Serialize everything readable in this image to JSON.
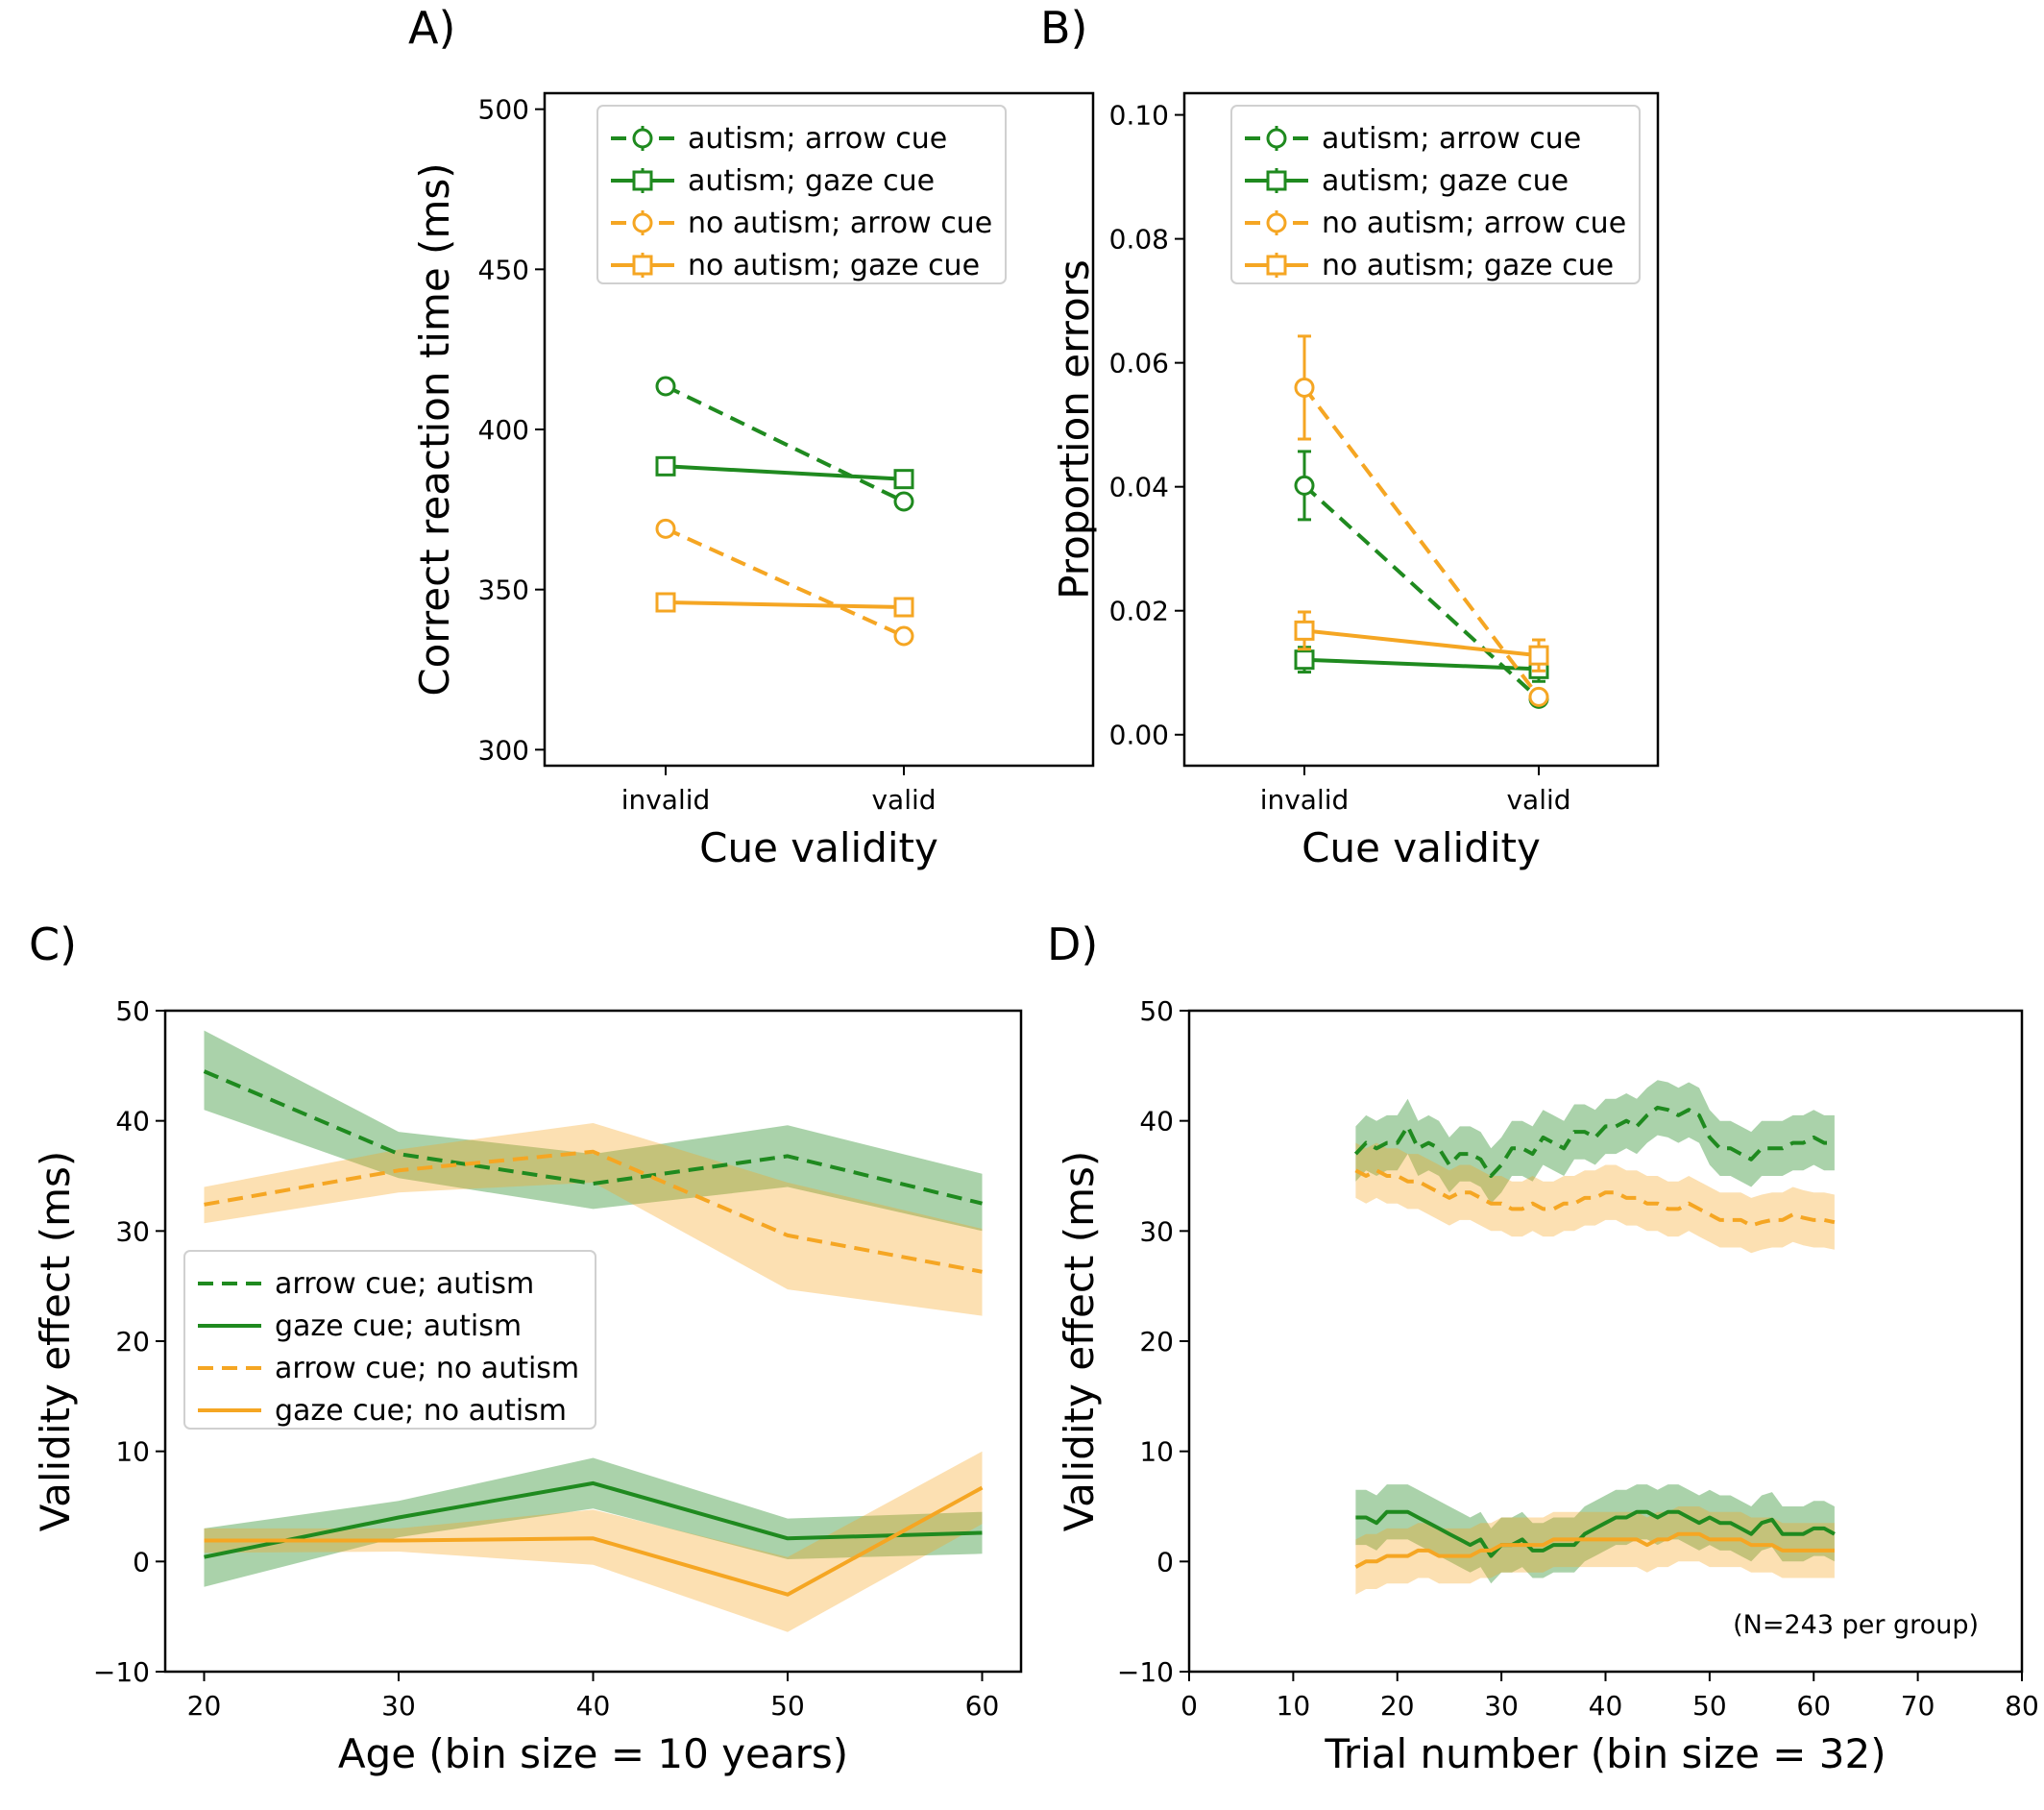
{
  "colors": {
    "autism": "#1f8a1f",
    "no_autism": "#f5a623"
  },
  "chart_data": [
    {
      "panel": "A)",
      "type": "line",
      "xlabel": "Cue validity",
      "ylabel": "Correct reaction time (ms)",
      "categories": [
        "invalid",
        "valid"
      ],
      "ylim": [
        295,
        505
      ],
      "yticks": [
        300,
        350,
        400,
        450,
        500
      ],
      "legend_placement": "top-right",
      "series": [
        {
          "name": "autism; arrow cue",
          "group": "autism",
          "cue": "arrow",
          "values": [
            413.5,
            377.5
          ],
          "err": [
            1.5,
            1.5
          ]
        },
        {
          "name": "autism; gaze cue",
          "group": "autism",
          "cue": "gaze",
          "values": [
            388.5,
            384.5
          ],
          "err": [
            1.5,
            1.5
          ]
        },
        {
          "name": "no autism; arrow cue",
          "group": "no_autism",
          "cue": "arrow",
          "values": [
            369,
            335.5
          ],
          "err": [
            1.5,
            1.5
          ]
        },
        {
          "name": "no autism; gaze cue",
          "group": "no_autism",
          "cue": "gaze",
          "values": [
            346,
            344.5
          ],
          "err": [
            1.5,
            1.5
          ]
        }
      ]
    },
    {
      "panel": "B)",
      "type": "line",
      "xlabel": "Cue validity",
      "ylabel": "Proportion errors",
      "categories": [
        "invalid",
        "valid"
      ],
      "ylim": [
        -0.005,
        0.1035
      ],
      "yticks": [
        0.0,
        0.02,
        0.04,
        0.06,
        0.08,
        0.1
      ],
      "ytick_labels": [
        "0.00",
        "0.02",
        "0.04",
        "0.06",
        "0.08",
        "0.10"
      ],
      "legend_placement": "top-right",
      "series": [
        {
          "name": "autism; arrow cue",
          "group": "autism",
          "cue": "arrow",
          "values": [
            0.0402,
            0.0058
          ],
          "err": [
            0.0055,
            0.001
          ]
        },
        {
          "name": "autism; gaze cue",
          "group": "autism",
          "cue": "gaze",
          "values": [
            0.0121,
            0.0106
          ],
          "err": [
            0.002,
            0.002
          ]
        },
        {
          "name": "no autism; arrow cue",
          "group": "no_autism",
          "cue": "arrow",
          "values": [
            0.056,
            0.0061
          ],
          "err": [
            0.0083,
            0.001
          ]
        },
        {
          "name": "no autism; gaze cue",
          "group": "no_autism",
          "cue": "gaze",
          "values": [
            0.0168,
            0.0128
          ],
          "err": [
            0.003,
            0.0025
          ]
        }
      ]
    },
    {
      "panel": "C)",
      "type": "line",
      "xlabel": "Age (bin size = 10 years)",
      "ylabel": "Validity effect (ms)",
      "x": [
        20,
        30,
        40,
        50,
        60
      ],
      "xlim": [
        18,
        62
      ],
      "xticks": [
        20,
        30,
        40,
        50,
        60
      ],
      "ylim": [
        -10,
        50
      ],
      "yticks": [
        -10,
        0,
        10,
        20,
        30,
        40,
        50
      ],
      "legend_placement": "center-left",
      "series": [
        {
          "name": "arrow cue; autism",
          "group": "autism",
          "cue": "arrow",
          "values": [
            44.5,
            37,
            34.3,
            36.8,
            32.5
          ],
          "lower": [
            41,
            34.8,
            32,
            34,
            30
          ],
          "upper": [
            48.2,
            39,
            37,
            39.6,
            35.2
          ]
        },
        {
          "name": "gaze cue; autism",
          "group": "autism",
          "cue": "gaze",
          "values": [
            0.4,
            4,
            7.1,
            2.1,
            2.6
          ],
          "lower": [
            -2.3,
            2.2,
            4.8,
            0.2,
            0.7
          ],
          "upper": [
            3,
            5.5,
            9.4,
            3.9,
            4.5
          ]
        },
        {
          "name": "arrow cue; no autism",
          "group": "no_autism",
          "cue": "arrow",
          "values": [
            32.4,
            35.5,
            37.2,
            29.6,
            26.3
          ],
          "lower": [
            30.7,
            33.5,
            34.4,
            24.7,
            22.3
          ],
          "upper": [
            34,
            37.4,
            39.8,
            34.4,
            30.2
          ]
        },
        {
          "name": "gaze cue; no autism",
          "group": "no_autism",
          "cue": "gaze",
          "values": [
            1.9,
            1.9,
            2.1,
            -3,
            6.7
          ],
          "lower": [
            0.8,
            0.9,
            -0.3,
            -6.4,
            3.4
          ],
          "upper": [
            3,
            3,
            4.7,
            0.4,
            10
          ]
        }
      ]
    },
    {
      "panel": "D)",
      "type": "line",
      "xlabel": "Trial number (bin size = 32)",
      "ylabel": "Validity effect (ms)",
      "annotation": "(N=243 per group)",
      "xlim": [
        0,
        80
      ],
      "xticks": [
        0,
        10,
        20,
        30,
        40,
        50,
        60,
        70,
        80
      ],
      "ylim": [
        -10,
        50
      ],
      "yticks": [
        -10,
        0,
        10,
        20,
        30,
        40,
        50
      ],
      "band_halfwidth": 2.5,
      "x": [
        16,
        17,
        18,
        19,
        20,
        21,
        22,
        23,
        24,
        25,
        26,
        27,
        28,
        29,
        30,
        31,
        32,
        33,
        34,
        35,
        36,
        37,
        38,
        39,
        40,
        41,
        42,
        43,
        44,
        45,
        46,
        47,
        48,
        49,
        50,
        51,
        52,
        53,
        54,
        55,
        56,
        57,
        58,
        59,
        60,
        61,
        62
      ],
      "series": [
        {
          "name": "arrow cue; autism",
          "group": "autism",
          "cue": "arrow",
          "values": [
            37,
            38,
            37.5,
            38,
            38,
            39.5,
            37.5,
            38,
            37.5,
            36,
            37,
            37,
            36.5,
            35,
            36,
            37.5,
            37.5,
            37,
            38.5,
            38,
            37.5,
            39,
            39,
            38.5,
            39.5,
            39.5,
            40,
            39.5,
            40.5,
            41.2,
            41,
            40.5,
            41,
            40.5,
            38.5,
            37.5,
            37.5,
            37,
            36.5,
            37.5,
            37.5,
            37.5,
            38,
            38,
            38.5,
            38,
            38
          ]
        },
        {
          "name": "gaze cue; autism",
          "group": "autism",
          "cue": "gaze",
          "values": [
            4,
            4,
            3.5,
            4.5,
            4.5,
            4.5,
            4,
            3.5,
            3,
            2.5,
            2,
            1.5,
            2,
            0.5,
            1.5,
            1.5,
            2,
            1,
            1,
            1.5,
            1.5,
            1.5,
            2.5,
            3,
            3.5,
            4,
            4,
            4.5,
            4.5,
            4,
            4.5,
            4.5,
            4,
            3.5,
            4,
            3.5,
            3.5,
            3,
            2.5,
            3.5,
            3.8,
            2.5,
            2.5,
            2.5,
            3,
            3,
            2.5
          ]
        },
        {
          "name": "arrow cue; no autism",
          "group": "no_autism",
          "cue": "arrow",
          "values": [
            35.5,
            35,
            35.5,
            35,
            35,
            34.5,
            34.5,
            34,
            33.5,
            33,
            33.5,
            33.5,
            33,
            32.5,
            32.5,
            32,
            32,
            32.5,
            32,
            32,
            32.5,
            32.5,
            33,
            33,
            33.5,
            33.5,
            33,
            33,
            32.5,
            32.5,
            32,
            32,
            32.5,
            32,
            31.5,
            31,
            31,
            31,
            30.5,
            30.8,
            31,
            31,
            31.5,
            31.2,
            31,
            31,
            30.8
          ]
        },
        {
          "name": "gaze cue; no autism",
          "group": "no_autism",
          "cue": "gaze",
          "values": [
            -0.5,
            0,
            0,
            0.5,
            0.5,
            0.5,
            1,
            1,
            0.5,
            0.5,
            0.5,
            0.5,
            1,
            1,
            1.5,
            1.5,
            1.5,
            1.5,
            1.5,
            2,
            2,
            2,
            2,
            2,
            2,
            2,
            2,
            2,
            1.5,
            2,
            2,
            2.5,
            2.5,
            2.5,
            2,
            2,
            2,
            2,
            1.5,
            1.5,
            1.5,
            1,
            1,
            1,
            1,
            1,
            1
          ]
        }
      ]
    }
  ]
}
